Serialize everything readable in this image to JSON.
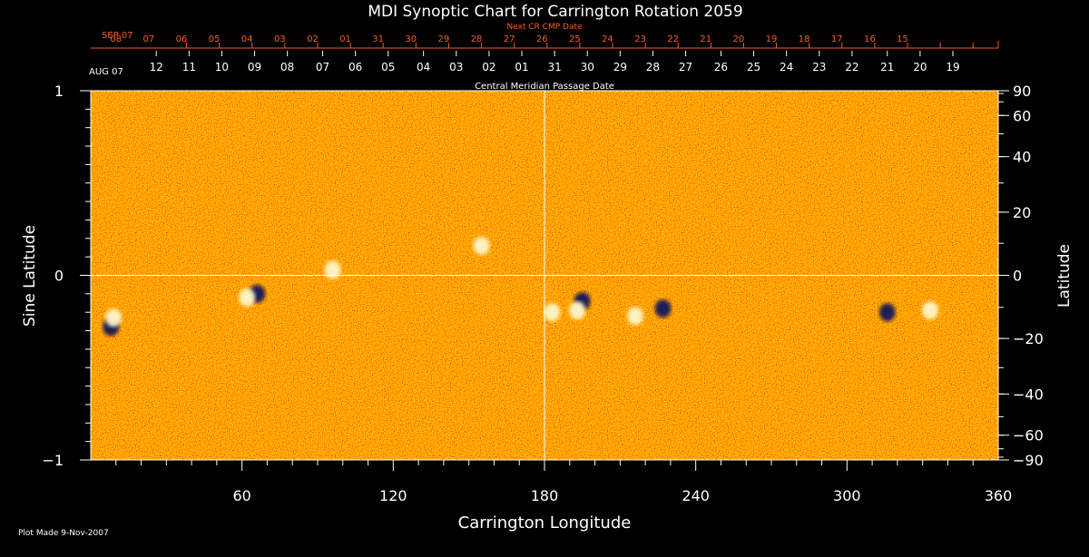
{
  "chart_data": {
    "type": "heatmap",
    "title": "MDI Synoptic Chart for Carrington Rotation 2059",
    "xlabel": "Carrington Longitude",
    "ylabel_left": "Sine Latitude",
    "ylabel_right": "Latitude",
    "xlim": [
      0,
      360
    ],
    "ylim": [
      -1,
      1
    ],
    "x_ticks": [
      60,
      120,
      180,
      240,
      300,
      360
    ],
    "y_ticks_left": [
      {
        "value": 1,
        "label": "1"
      },
      {
        "value": 0,
        "label": "0"
      },
      {
        "value": -1,
        "label": "−1"
      }
    ],
    "y_ticks_right": [
      {
        "deg": 90,
        "label": "90"
      },
      {
        "deg": 60,
        "label": "60"
      },
      {
        "deg": 40,
        "label": "40"
      },
      {
        "deg": 20,
        "label": "20"
      },
      {
        "deg": 0,
        "label": "0"
      },
      {
        "deg": -20,
        "label": "−20"
      },
      {
        "deg": -40,
        "label": "−40"
      },
      {
        "deg": -60,
        "label": "−60"
      },
      {
        "deg": -90,
        "label": "−90"
      }
    ],
    "top_axis_next": {
      "caption": "Next CR CMP Date",
      "start_label": "SEP 07",
      "start_longitude": 360,
      "labels": [
        "08",
        "07",
        "06",
        "05",
        "04",
        "03",
        "02",
        "01",
        "31",
        "30",
        "29",
        "28",
        "27",
        "26",
        "25",
        "24",
        "23",
        "22",
        "21",
        "20",
        "19",
        "18",
        "17",
        "16",
        "15"
      ],
      "label_longitudes": [
        350.0,
        337.0,
        324.0,
        311.0,
        298.0,
        285.0,
        272.0,
        259.0,
        246.0,
        233.0,
        220.0,
        207.0,
        194.0,
        181.0,
        168.0,
        155.0,
        142.0,
        129.0,
        116.0,
        103.0,
        90.0,
        77.0,
        64.0,
        51.0,
        38.0
      ],
      "color": "#ff5a1e"
    },
    "top_axis_current": {
      "caption": "Central Meridian Passage Date",
      "start_label": "AUG 07",
      "labels": [
        "12",
        "11",
        "10",
        "09",
        "08",
        "07",
        "06",
        "05",
        "04",
        "03",
        "02",
        "01",
        "31",
        "30",
        "29",
        "28",
        "27",
        "26",
        "25",
        "24",
        "23",
        "22",
        "21",
        "20",
        "19"
      ],
      "label_longitudes": [
        334.0,
        321.0,
        308.0,
        295.0,
        282.0,
        268.0,
        255.0,
        242.0,
        228.0,
        215.0,
        202.0,
        189.0,
        176.0,
        163.0,
        150.0,
        137.0,
        124.0,
        110.0,
        97.0,
        84.0,
        71.0,
        58.0,
        44.0,
        31.0,
        18.0
      ],
      "color": "#ffffff"
    },
    "crosshair": {
      "longitude": 180,
      "sine_latitude": 0
    },
    "magnetic_features": [
      {
        "lon": 66,
        "sinlat": -0.1,
        "polarity": "negative"
      },
      {
        "lon": 62,
        "sinlat": -0.12,
        "polarity": "positive"
      },
      {
        "lon": 8,
        "sinlat": -0.28,
        "polarity": "negative"
      },
      {
        "lon": 9,
        "sinlat": -0.23,
        "polarity": "positive"
      },
      {
        "lon": 195,
        "sinlat": -0.14,
        "polarity": "negative"
      },
      {
        "lon": 193,
        "sinlat": -0.19,
        "polarity": "positive"
      },
      {
        "lon": 183,
        "sinlat": -0.2,
        "polarity": "positive"
      },
      {
        "lon": 227,
        "sinlat": -0.18,
        "polarity": "negative"
      },
      {
        "lon": 216,
        "sinlat": -0.22,
        "polarity": "positive"
      },
      {
        "lon": 316,
        "sinlat": -0.2,
        "polarity": "negative"
      },
      {
        "lon": 333,
        "sinlat": -0.19,
        "polarity": "positive"
      },
      {
        "lon": 155,
        "sinlat": 0.16,
        "polarity": "positive"
      },
      {
        "lon": 96,
        "sinlat": 0.03,
        "polarity": "positive"
      }
    ],
    "colors": {
      "background": "#ff5a1e",
      "positive": "#fff6c8",
      "negative": "#14145a",
      "axes": "#ffffff"
    },
    "grid": false
  },
  "footer": {
    "plot_made": "Plot Made  9-Nov-2007"
  }
}
